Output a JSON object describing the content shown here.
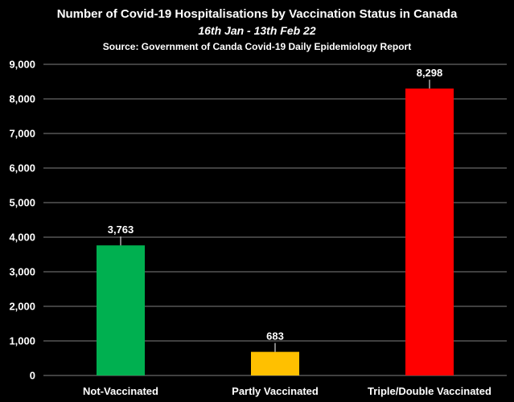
{
  "chart_data": {
    "type": "bar",
    "title": "Number of Covid-19 Hospitalisations by Vaccination Status in Canada",
    "subtitle": "16th Jan - 13th Feb 22",
    "source": "Source: Government of Canda Covid-19 Daily Epidemiology Report",
    "categories": [
      "Not-Vaccinated",
      "Partly Vaccinated",
      "Triple/Double Vaccinated"
    ],
    "values": [
      3763,
      683,
      8298
    ],
    "value_labels": [
      "3,763",
      "683",
      "8,298"
    ],
    "bar_colors": [
      "#00b050",
      "#ffc000",
      "#ff0000"
    ],
    "y_ticks": [
      "0",
      "1,000",
      "2,000",
      "3,000",
      "4,000",
      "5,000",
      "6,000",
      "7,000",
      "8,000",
      "9,000"
    ],
    "ylim": [
      0,
      9000
    ],
    "xlabel": "",
    "ylabel": "",
    "grid": true,
    "legend": "none"
  },
  "colors": {
    "background": "#000000",
    "text": "#ffffff",
    "grid": "#7f7f7f"
  }
}
